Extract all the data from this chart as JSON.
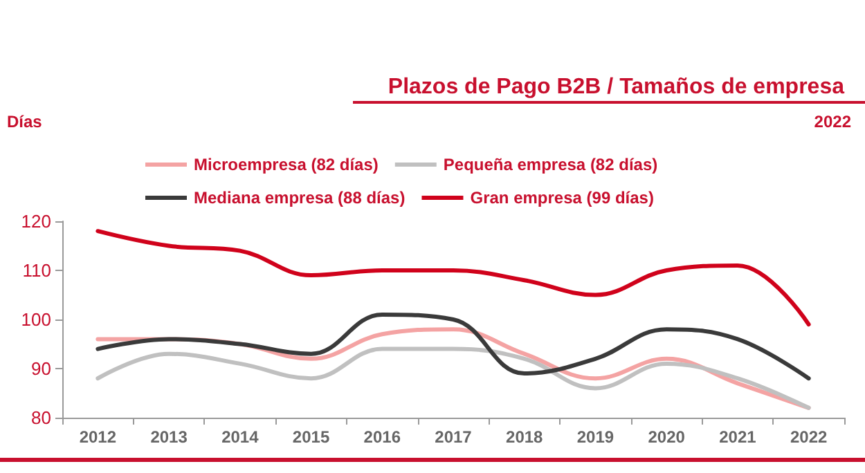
{
  "chart_data": {
    "type": "line",
    "title": "Plazos de Pago B2B / Tamaños de empresa",
    "ylabel": "Días",
    "annotations": [
      "2022"
    ],
    "categories": [
      "2012",
      "2013",
      "2014",
      "2015",
      "2016",
      "2017",
      "2018",
      "2019",
      "2020",
      "2021",
      "2022"
    ],
    "series": [
      {
        "name": "Microempresa (82 días)",
        "color": "#f4a3a3",
        "values": [
          96,
          96,
          95,
          92,
          97,
          98,
          93,
          88,
          92,
          87,
          82
        ]
      },
      {
        "name": "Pequeña empresa (82 días)",
        "color": "#c0c0c0",
        "values": [
          88,
          93,
          91,
          88,
          94,
          94,
          92,
          86,
          91,
          88,
          82
        ]
      },
      {
        "name": "Mediana empresa (88 días)",
        "color": "#3a3a3a",
        "values": [
          94,
          96,
          95,
          93,
          101,
          100,
          89,
          92,
          98,
          96,
          88
        ]
      },
      {
        "name": "Gran empresa (99 días)",
        "color": "#d0021b",
        "values": [
          118,
          115,
          114,
          109,
          110,
          110,
          108,
          105,
          110,
          111,
          99
        ]
      }
    ],
    "ylim": [
      80,
      120
    ],
    "yticks": [
      80,
      90,
      100,
      110,
      120
    ],
    "grid": false,
    "legend": "top",
    "marker": "none",
    "line_style": "solid"
  }
}
